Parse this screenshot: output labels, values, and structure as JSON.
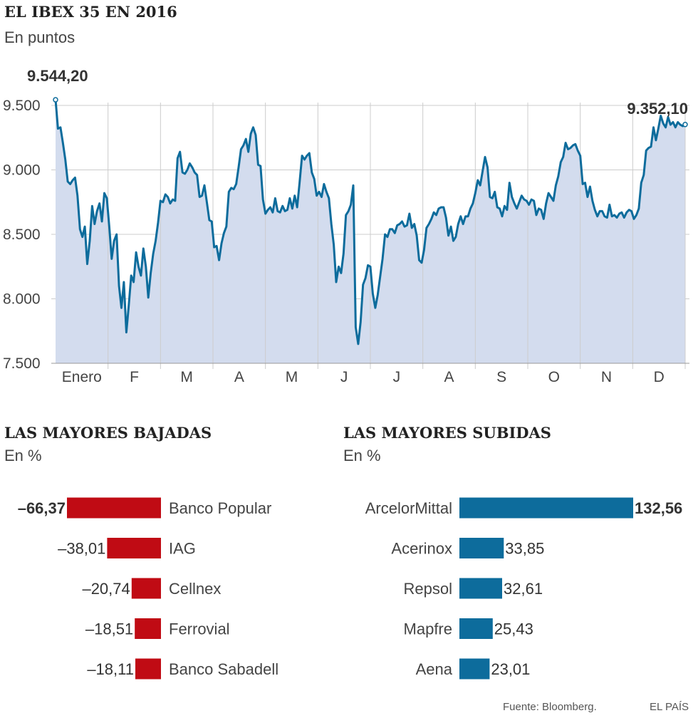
{
  "header": {
    "title": "EL IBEX 35 EN 2016",
    "subtitle": "En puntos"
  },
  "chart_data": [
    {
      "type": "line",
      "title": "EL IBEX 35 EN 2016",
      "subtitle": "En puntos",
      "ylim": [
        7500,
        9500
      ],
      "y_ticks": [
        7500,
        8000,
        8500,
        9000,
        9500
      ],
      "y_tick_labels": [
        "7.500",
        "8.000",
        "8.500",
        "9.000",
        "9.500"
      ],
      "x_tick_labels": [
        "Enero",
        "F",
        "M",
        "A",
        "M",
        "J",
        "J",
        "A",
        "S",
        "O",
        "N",
        "D"
      ],
      "grid": true,
      "start_label": "9.544,20",
      "end_label": "9.352,10",
      "series": [
        {
          "color": "#0d6c9c",
          "fill": "#d3dcee",
          "values": [
            9544,
            9320,
            9330,
            9210,
            9080,
            8910,
            8890,
            8920,
            8940,
            8800,
            8540,
            8480,
            8560,
            8270,
            8450,
            8720,
            8580,
            8680,
            8740,
            8600,
            8820,
            8780,
            8560,
            8310,
            8450,
            8500,
            8100,
            7930,
            8130,
            7740,
            7950,
            8180,
            8130,
            8360,
            8250,
            8180,
            8390,
            8250,
            8010,
            8200,
            8350,
            8450,
            8590,
            8760,
            8750,
            8810,
            8790,
            8740,
            8770,
            8760,
            9090,
            9140,
            8980,
            8970,
            9000,
            9050,
            9020,
            8980,
            8960,
            8790,
            8800,
            8880,
            8750,
            8610,
            8600,
            8400,
            8410,
            8300,
            8430,
            8510,
            8560,
            8830,
            8860,
            8850,
            8890,
            9020,
            9160,
            9190,
            9240,
            9140,
            9280,
            9330,
            9270,
            9040,
            9030,
            8770,
            8660,
            8690,
            8710,
            8670,
            8780,
            8680,
            8670,
            8720,
            8680,
            8690,
            8780,
            8700,
            8800,
            8710,
            8900,
            9110,
            9080,
            9110,
            9130,
            8980,
            8930,
            8800,
            8830,
            8790,
            8890,
            8830,
            8780,
            8580,
            8420,
            8130,
            8250,
            8200,
            8350,
            8650,
            8680,
            8730,
            8880,
            7780,
            7650,
            7820,
            8110,
            8160,
            8260,
            8250,
            8040,
            7930,
            8030,
            8170,
            8310,
            8500,
            8480,
            8540,
            8540,
            8510,
            8570,
            8580,
            8600,
            8560,
            8570,
            8660,
            8550,
            8580,
            8490,
            8300,
            8280,
            8380,
            8550,
            8580,
            8620,
            8670,
            8650,
            8700,
            8710,
            8710,
            8630,
            8490,
            8560,
            8450,
            8480,
            8580,
            8640,
            8580,
            8640,
            8640,
            8700,
            8740,
            8820,
            8920,
            8880,
            8990,
            9100,
            9020,
            8790,
            8780,
            8830,
            8710,
            8700,
            8640,
            8720,
            8690,
            8900,
            8790,
            8740,
            8700,
            8750,
            8800,
            8770,
            8760,
            8730,
            8770,
            8760,
            8650,
            8700,
            8690,
            8620,
            8740,
            8820,
            8790,
            8760,
            8880,
            8950,
            9060,
            9100,
            9210,
            9160,
            9170,
            9190,
            9200,
            9150,
            9110,
            8890,
            8900,
            8790,
            8870,
            8760,
            8690,
            8640,
            8680,
            8680,
            8640,
            8630,
            8730,
            8640,
            8650,
            8630,
            8660,
            8670,
            8630,
            8670,
            8690,
            8680,
            8620,
            8650,
            8700,
            8900,
            8960,
            9150,
            9170,
            9180,
            9330,
            9230,
            9320,
            9420,
            9360,
            9330,
            9410,
            9350,
            9370,
            9330,
            9370,
            9350,
            9340,
            9352
          ]
        }
      ]
    },
    {
      "type": "bar",
      "title": "LAS MAYORES BAJADAS",
      "subtitle": "En %",
      "categories": [
        "Banco Popular",
        "IAG",
        "Cellnex",
        "Ferrovial",
        "Banco Sabadell"
      ],
      "value_labels": [
        "–66,37",
        "–38,01",
        "–20,74",
        "–18,51",
        "–18,11"
      ],
      "series": [
        {
          "color": "#c00b14",
          "values": [
            -66.37,
            -38.01,
            -20.74,
            -18.51,
            -18.11
          ]
        }
      ]
    },
    {
      "type": "bar",
      "title": "LAS MAYORES SUBIDAS",
      "subtitle": "En %",
      "categories": [
        "ArcelorMittal",
        "Acerinox",
        "Repsol",
        "Mapfre",
        "Aena"
      ],
      "value_labels": [
        "132,56",
        "33,85",
        "32,61",
        "25,43",
        "23,01"
      ],
      "series": [
        {
          "color": "#0d6c9c",
          "values": [
            132.56,
            33.85,
            32.61,
            25.43,
            23.01
          ]
        }
      ]
    }
  ],
  "footer": {
    "source": "Fuente: Bloomberg.",
    "brand": "EL PAÍS"
  }
}
